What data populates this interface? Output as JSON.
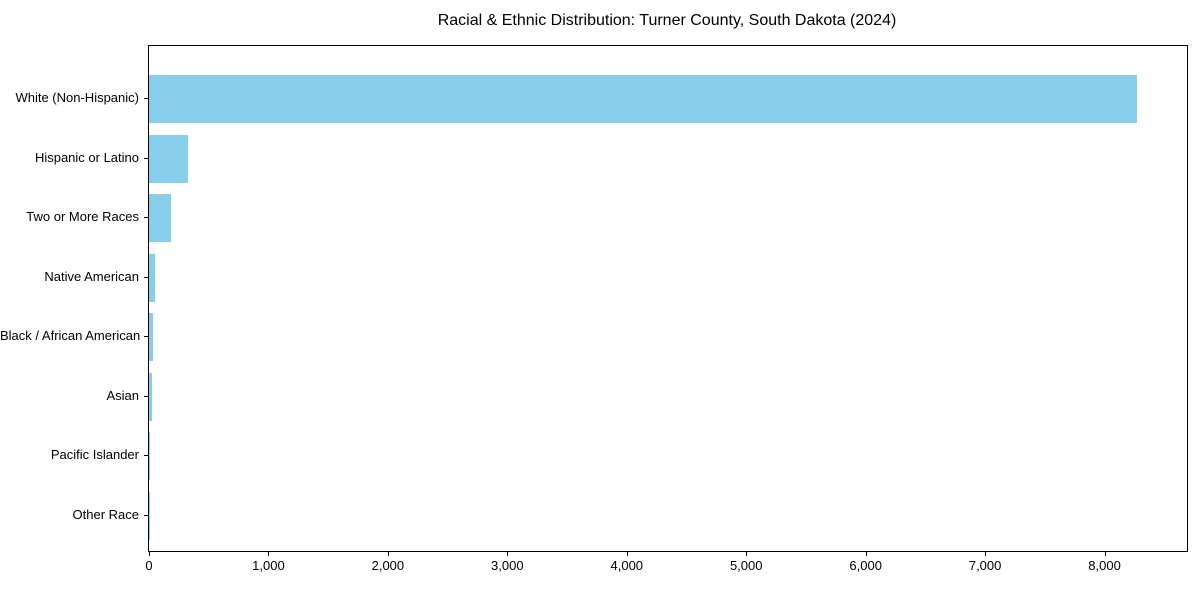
{
  "page": {
    "background_color": "#ffffff",
    "frame_color": "#000000"
  },
  "chart_data": {
    "type": "bar",
    "orientation": "horizontal",
    "title": "Racial & Ethnic Distribution: Turner County, South Dakota (2024)",
    "categories": [
      "White (Non-Hispanic)",
      "Hispanic or Latino",
      "Two or More Races",
      "Native American",
      "Black / African American",
      "Asian",
      "Pacific Islander",
      "Other Race"
    ],
    "values": [
      8270,
      330,
      185,
      48,
      36,
      25,
      8,
      2
    ],
    "xlabel": "",
    "ylabel": "",
    "xlim": [
      0,
      8690
    ],
    "x_ticks": [
      0,
      1000,
      2000,
      3000,
      4000,
      5000,
      6000,
      7000,
      8000
    ],
    "x_tick_labels": [
      "0",
      "1,000",
      "2,000",
      "3,000",
      "4,000",
      "5,000",
      "6,000",
      "7,000",
      "8,000"
    ],
    "bar_color": "#87CEEB",
    "grid": false,
    "legend": null,
    "frame": true
  }
}
